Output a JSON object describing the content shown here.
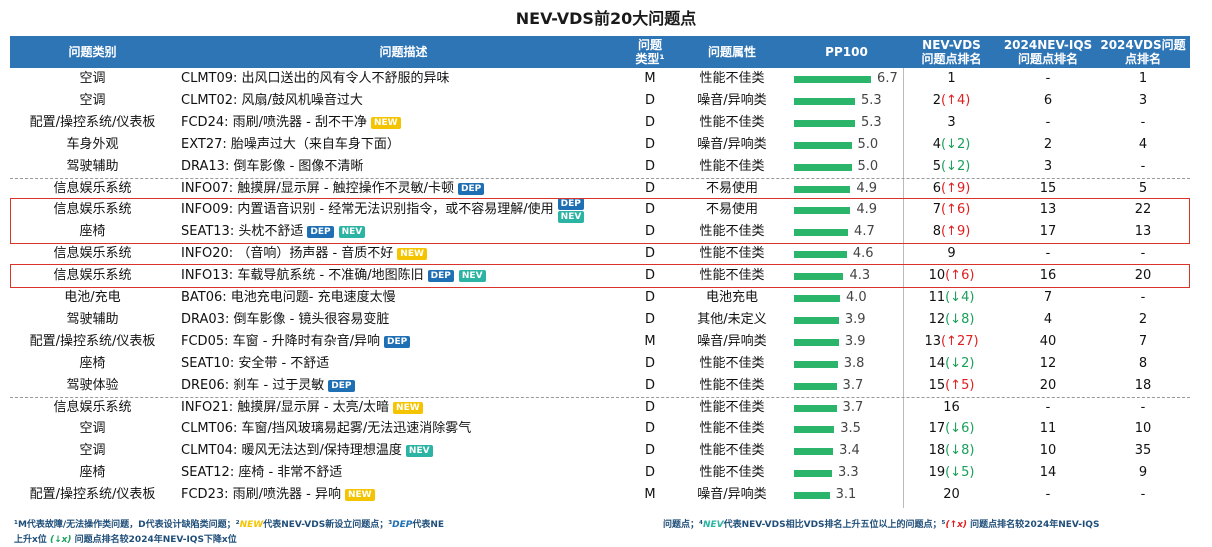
{
  "title": "NEV-VDS前20大问题点",
  "table": {
    "header": [
      [
        "问题类别"
      ],
      [
        "问题描述"
      ],
      [
        "问题",
        "类型¹"
      ],
      [
        "问题属性"
      ],
      [
        "PP100"
      ],
      [
        "NEV-VDS",
        "问题点排名"
      ],
      [
        "2024NEV-IQS",
        "问题点排名"
      ],
      [
        "2024VDS问题",
        "点排名"
      ]
    ],
    "rows": [
      {
        "category": "空调",
        "desc": "CLMT09: 出风口送出的风有令人不舒服的异味",
        "badges": [],
        "type": "M",
        "attr": "性能不佳类",
        "pp100": "6.7",
        "rank": "1",
        "change": "",
        "iqs": "-",
        "vds": "1"
      },
      {
        "category": "空调",
        "desc": "CLMT02: 风扇/鼓风机噪音过大",
        "badges": [],
        "type": "D",
        "attr": "噪音/异响类",
        "pp100": "5.3",
        "rank": "2",
        "change": "(↑4)",
        "iqs": "6",
        "vds": "3"
      },
      {
        "category": "配置/操控系统/仪表板",
        "desc": "FCD24: 雨刷/喷洗器 - 刮不干净",
        "badges": [
          "NEW"
        ],
        "type": "D",
        "attr": "性能不佳类",
        "pp100": "5.3",
        "rank": "3",
        "change": "",
        "iqs": "-",
        "vds": "-"
      },
      {
        "category": "车身外观",
        "desc": "EXT27: 胎噪声过大（来自车身下面）",
        "badges": [],
        "type": "D",
        "attr": "噪音/异响类",
        "pp100": "5.0",
        "rank": "4",
        "change": "(↓2)",
        "iqs": "2",
        "vds": "4"
      },
      {
        "category": "驾驶辅助",
        "desc": "DRA13: 倒车影像 - 图像不清晰",
        "badges": [],
        "type": "D",
        "attr": "性能不佳类",
        "pp100": "5.0",
        "rank": "5",
        "change": "(↓2)",
        "iqs": "3",
        "vds": "-"
      },
      {
        "category": "信息娱乐系统",
        "desc": "INFO07: 触摸屏/显示屏 - 触控操作不灵敏/卡顿",
        "badges": [
          "DEP"
        ],
        "type": "D",
        "attr": "不易使用",
        "pp100": "4.9",
        "rank": "6",
        "change": "(↑9)",
        "iqs": "15",
        "vds": "5"
      },
      {
        "category": "信息娱乐系统",
        "desc": "INFO09: 内置语音识别 - 经常无法识别指令，或不容易理解/使用",
        "badges": [
          "DEP",
          "NEV"
        ],
        "type": "D",
        "attr": "不易使用",
        "pp100": "4.9",
        "rank": "7",
        "change": "(↑6)",
        "iqs": "13",
        "vds": "22"
      },
      {
        "category": "座椅",
        "desc": "SEAT13: 头枕不舒适",
        "badges": [
          "DEP",
          "NEV"
        ],
        "type": "D",
        "attr": "性能不佳类",
        "pp100": "4.7",
        "rank": "8",
        "change": "(↑9)",
        "iqs": "17",
        "vds": "13"
      },
      {
        "category": "信息娱乐系统",
        "desc": "INFO20: （音响）扬声器 - 音质不好",
        "badges": [
          "NEW"
        ],
        "type": "D",
        "attr": "性能不佳类",
        "pp100": "4.6",
        "rank": "9",
        "change": "",
        "iqs": "-",
        "vds": "-"
      },
      {
        "category": "信息娱乐系统",
        "desc": "INFO13: 车载导航系统 - 不准确/地图陈旧",
        "badges": [
          "DEP",
          "NEV"
        ],
        "type": "D",
        "attr": "性能不佳类",
        "pp100": "4.3",
        "rank": "10",
        "change": "(↑6)",
        "iqs": "16",
        "vds": "20"
      },
      {
        "category": "电池/充电",
        "desc": "BAT06: 电池充电问题- 充电速度太慢",
        "badges": [],
        "type": "D",
        "attr": "电池充电",
        "pp100": "4.0",
        "rank": "11",
        "change": "(↓4)",
        "iqs": "7",
        "vds": "-"
      },
      {
        "category": "驾驶辅助",
        "desc": "DRA03: 倒车影像 - 镜头很容易变脏",
        "badges": [],
        "type": "D",
        "attr": "其他/未定义",
        "pp100": "3.9",
        "rank": "12",
        "change": "(↓8)",
        "iqs": "4",
        "vds": "2"
      },
      {
        "category": "配置/操控系统/仪表板",
        "desc": "FCD05: 车窗 - 升降时有杂音/异响",
        "badges": [
          "DEP"
        ],
        "type": "M",
        "attr": "噪音/异响类",
        "pp100": "3.9",
        "rank": "13",
        "change": "(↑27)",
        "iqs": "40",
        "vds": "7"
      },
      {
        "category": "座椅",
        "desc": "SEAT10: 安全带 - 不舒适",
        "badges": [],
        "type": "D",
        "attr": "性能不佳类",
        "pp100": "3.8",
        "rank": "14",
        "change": "(↓2)",
        "iqs": "12",
        "vds": "8"
      },
      {
        "category": "驾驶体验",
        "desc": "DRE06: 刹车 - 过于灵敏",
        "badges": [
          "DEP"
        ],
        "type": "D",
        "attr": "性能不佳类",
        "pp100": "3.7",
        "rank": "15",
        "change": "(↑5)",
        "iqs": "20",
        "vds": "18"
      },
      {
        "category": "信息娱乐系统",
        "desc": "INFO21: 触摸屏/显示屏 - 太亮/太暗",
        "badges": [
          "NEW"
        ],
        "type": "D",
        "attr": "性能不佳类",
        "pp100": "3.7",
        "rank": "16",
        "change": "",
        "iqs": "-",
        "vds": "-"
      },
      {
        "category": "空调",
        "desc": "CLMT06: 车窗/挡风玻璃易起雾/无法迅速消除雾气",
        "badges": [],
        "type": "D",
        "attr": "性能不佳类",
        "pp100": "3.5",
        "rank": "17",
        "change": "(↓6)",
        "iqs": "11",
        "vds": "10"
      },
      {
        "category": "空调",
        "desc": "CLMT04: 暖风无法达到/保持理想温度",
        "badges": [
          "NEV"
        ],
        "type": "D",
        "attr": "性能不佳类",
        "pp100": "3.4",
        "rank": "18",
        "change": "(↓8)",
        "iqs": "10",
        "vds": "35"
      },
      {
        "category": "座椅",
        "desc": "SEAT12: 座椅 - 非常不舒适",
        "badges": [],
        "type": "D",
        "attr": "性能不佳类",
        "pp100": "3.3",
        "rank": "19",
        "change": "(↓5)",
        "iqs": "14",
        "vds": "9"
      },
      {
        "category": "配置/操控系统/仪表板",
        "desc": "FCD23: 雨刷/喷洗器 - 异响",
        "badges": [
          "NEW"
        ],
        "type": "M",
        "attr": "噪音/异响类",
        "pp100": "3.1",
        "rank": "20",
        "change": "",
        "iqs": "-",
        "vds": "-"
      }
    ]
  },
  "footnote": {
    "left": [
      "¹M代表故障/无法操作类问题，D代表设计缺陷类问题；²",
      "NEW",
      "代表NEV-VDS新设立问题点；³",
      "DEP",
      "代表NE"
    ],
    "right": [
      "问题点；⁴",
      "NEV",
      "代表NEV-VDS相比VDS排名上升五位以上的问题点；⁵",
      "(↑x)",
      " 问题点排名较2024年NEV-IQS"
    ],
    "line2": [
      "上升x位 ",
      "(↓x)",
      " 问题点排名较2024年NEV-IQS下降x位"
    ]
  }
}
